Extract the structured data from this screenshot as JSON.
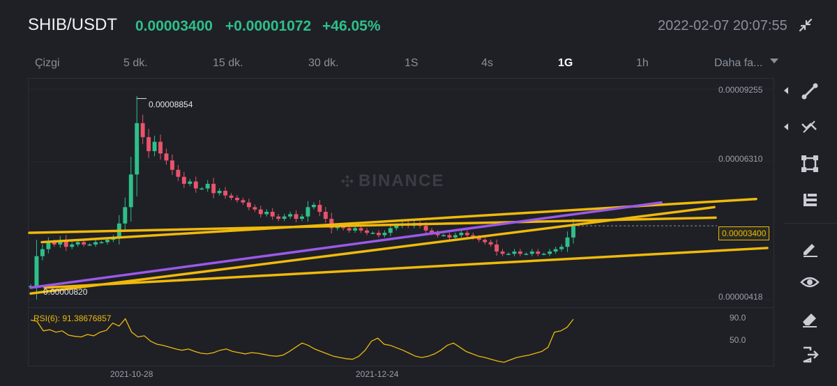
{
  "header": {
    "pair": "SHIB/USDT",
    "price": "0.00003400",
    "change": "+0.00001072",
    "change_pct": "+46.05%",
    "timestamp": "2022-02-07 20:07:55"
  },
  "tabs": [
    {
      "label": "Çizgi",
      "active": false
    },
    {
      "label": "5 dk.",
      "active": false
    },
    {
      "label": "15 dk.",
      "active": false
    },
    {
      "label": "30 dk.",
      "active": false
    },
    {
      "label": "1S",
      "active": false
    },
    {
      "label": "4s",
      "active": false
    },
    {
      "label": "1G",
      "active": true
    },
    {
      "label": "1h",
      "active": false
    },
    {
      "label": "Daha fa...",
      "active": false
    }
  ],
  "watermark": "BINANCE",
  "price_axis": [
    "0.00009255",
    "0.00006310",
    "0.00003400",
    "0.00000418"
  ],
  "annotations": {
    "high_label": "0.00008854",
    "low_label": "0.00000820",
    "last_price_tag": "0.00003400"
  },
  "rsi": {
    "label": "RSI(6): 91.38676857",
    "levels": [
      "90.0",
      "50.0"
    ]
  },
  "date_axis": [
    "2021-10-28",
    "2021-12-24"
  ],
  "toolbar": {
    "tools": [
      "line-tool-icon",
      "fib-tool-icon",
      "rectangle-tool-icon",
      "text-tool-icon",
      "pen-icon",
      "eye-icon",
      "eraser-icon",
      "exit-icon"
    ]
  },
  "colors": {
    "up": "#2fbf8a",
    "down": "#e9546b",
    "trendline": "#f0b90b",
    "purple_line": "#9b59e8",
    "background": "#1e2026"
  },
  "chart_data": {
    "type": "candlestick",
    "symbol": "SHIB/USDT",
    "interval": "1G",
    "y_range": [
      4.18e-06,
      9.255e-05
    ],
    "high": 8.854e-05,
    "low": 8.2e-06,
    "last": 3.4e-05,
    "closes_approx": [
      8.2e-06,
      2.1e-05,
      2.4e-05,
      2.7e-05,
      2.6e-05,
      2.8e-05,
      2.5e-05,
      2.6e-05,
      2.7e-05,
      2.6e-05,
      2.6e-05,
      2.7e-05,
      2.7e-05,
      2.8e-05,
      2.9e-05,
      3.5e-05,
      4.2e-05,
      5.6e-05,
      7.8e-05,
      7.2e-05,
      6.6e-05,
      7e-05,
      6.5e-05,
      6.2e-05,
      5.8e-05,
      5.5e-05,
      5.2e-05,
      5.3e-05,
      5e-05,
      5e-05,
      5.2e-05,
      4.8e-05,
      4.9e-05,
      4.7e-05,
      4.6e-05,
      4.5e-05,
      4.4e-05,
      4.2e-05,
      4.1e-05,
      3.9e-05,
      4e-05,
      3.8e-05,
      3.7e-05,
      3.8e-05,
      3.9e-05,
      3.7e-05,
      3.8e-05,
      4.2e-05,
      4.3e-05,
      4e-05,
      3.7e-05,
      3.3e-05,
      3.4e-05,
      3.3e-05,
      3.2e-05,
      3.3e-05,
      3.2e-05,
      3.1e-05,
      3.1e-05,
      3e-05,
      3.1e-05,
      3.3e-05,
      3.4e-05,
      3.5e-05,
      3.4e-05,
      3.5e-05,
      3.4e-05,
      3.2e-05,
      3.1e-05,
      3e-05,
      3e-05,
      2.9e-05,
      3e-05,
      3.1e-05,
      3e-05,
      2.9e-05,
      2.8e-05,
      2.7e-05,
      2.6e-05,
      2.3e-05,
      2.2e-05,
      2.2e-05,
      2.3e-05,
      2.2e-05,
      2.2e-05,
      2.3e-05,
      2.2e-05,
      2.2e-05,
      2.3e-05,
      2.4e-05,
      2.5e-05,
      2.9e-05,
      3.4e-05
    ],
    "rsi_values": [
      90,
      88,
      72,
      74,
      70,
      72,
      65,
      63,
      62,
      66,
      64,
      70,
      73,
      85,
      80,
      92,
      70,
      62,
      64,
      55,
      50,
      48,
      45,
      42,
      40,
      42,
      38,
      35,
      34,
      36,
      40,
      42,
      38,
      36,
      34,
      36,
      35,
      33,
      31,
      30,
      32,
      38,
      45,
      52,
      48,
      42,
      38,
      34,
      30,
      28,
      26,
      25,
      30,
      40,
      55,
      60,
      50,
      48,
      44,
      40,
      35,
      30,
      28,
      30,
      34,
      40,
      48,
      52,
      45,
      38,
      34,
      30,
      28,
      25,
      22,
      20,
      24,
      28,
      30,
      32,
      35,
      38,
      45,
      70,
      72,
      78,
      91.39
    ],
    "rsi_label": "RSI(6): 91.38676857",
    "dates": [
      "2021-10-28",
      "2021-12-24"
    ],
    "trendlines": [
      {
        "color": "yellow",
        "from_price": 2.7e-05,
        "to_price": 4.55e-05
      },
      {
        "color": "yellow",
        "from_price": 3.1e-05,
        "to_price": 3.75e-05
      },
      {
        "color": "yellow",
        "from_price": 7.5e-06,
        "to_price": 2.45e-05
      },
      {
        "color": "yellow",
        "from_price": 5e-06,
        "to_price": 4.2e-05
      },
      {
        "color": "purple",
        "from_price": 7.5e-06,
        "to_price": 4.4e-05
      }
    ]
  }
}
